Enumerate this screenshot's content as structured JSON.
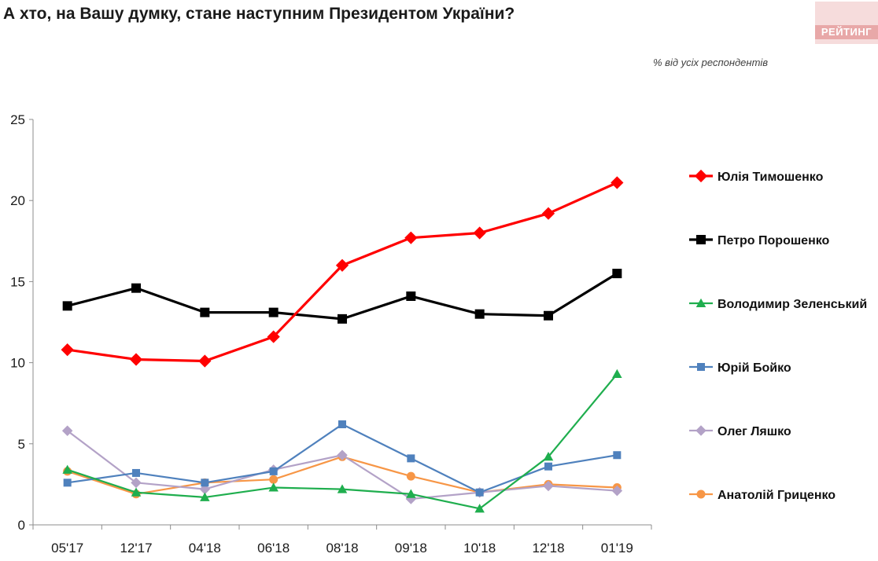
{
  "header": {
    "title": "А хто, на Вашу думку, стане наступним Президентом України?",
    "logo_text": "РЕЙТИНГ"
  },
  "chart_data": {
    "type": "line",
    "title": "А хто, на Вашу думку, стане наступним Президентом України?",
    "subtitle": "% від усіх респондентів",
    "xlabel": "",
    "ylabel": "",
    "categories": [
      "05'17",
      "12'17",
      "04'18",
      "06'18",
      "08'18",
      "09'18",
      "10'18",
      "12'18",
      "01'19"
    ],
    "ylim": [
      0,
      25
    ],
    "yticks": [
      0,
      5,
      10,
      15,
      20,
      25
    ],
    "grid": false,
    "legend_position": "right",
    "series": [
      {
        "name": "Юлія Тимошенко",
        "color": "#ff0000",
        "marker": "diamond",
        "values": [
          10.8,
          10.2,
          10.1,
          11.6,
          16.0,
          17.7,
          18.0,
          19.2,
          21.1
        ]
      },
      {
        "name": "Петро Порошенко",
        "color": "#000000",
        "marker": "square",
        "values": [
          13.5,
          14.6,
          13.1,
          13.1,
          12.7,
          14.1,
          13.0,
          12.9,
          15.5
        ]
      },
      {
        "name": "Володимир Зеленський",
        "color": "#1fae4e",
        "marker": "triangle",
        "values": [
          3.4,
          2.0,
          1.7,
          2.3,
          2.2,
          1.9,
          1.0,
          4.2,
          9.3
        ]
      },
      {
        "name": "Юрій Бойко",
        "color": "#4f81bd",
        "marker": "square",
        "values": [
          2.6,
          3.2,
          2.6,
          3.3,
          6.2,
          4.1,
          2.0,
          3.6,
          4.3
        ]
      },
      {
        "name": "Олег Ляшко",
        "color": "#b3a2c7",
        "marker": "diamond",
        "values": [
          5.8,
          2.6,
          2.2,
          3.4,
          4.3,
          1.6,
          2.0,
          2.4,
          2.1
        ]
      },
      {
        "name": "Анатолій Гриценко",
        "color": "#f79646",
        "marker": "circle",
        "values": [
          3.3,
          1.9,
          2.6,
          2.8,
          4.2,
          3.0,
          2.0,
          2.5,
          2.3
        ]
      }
    ]
  }
}
